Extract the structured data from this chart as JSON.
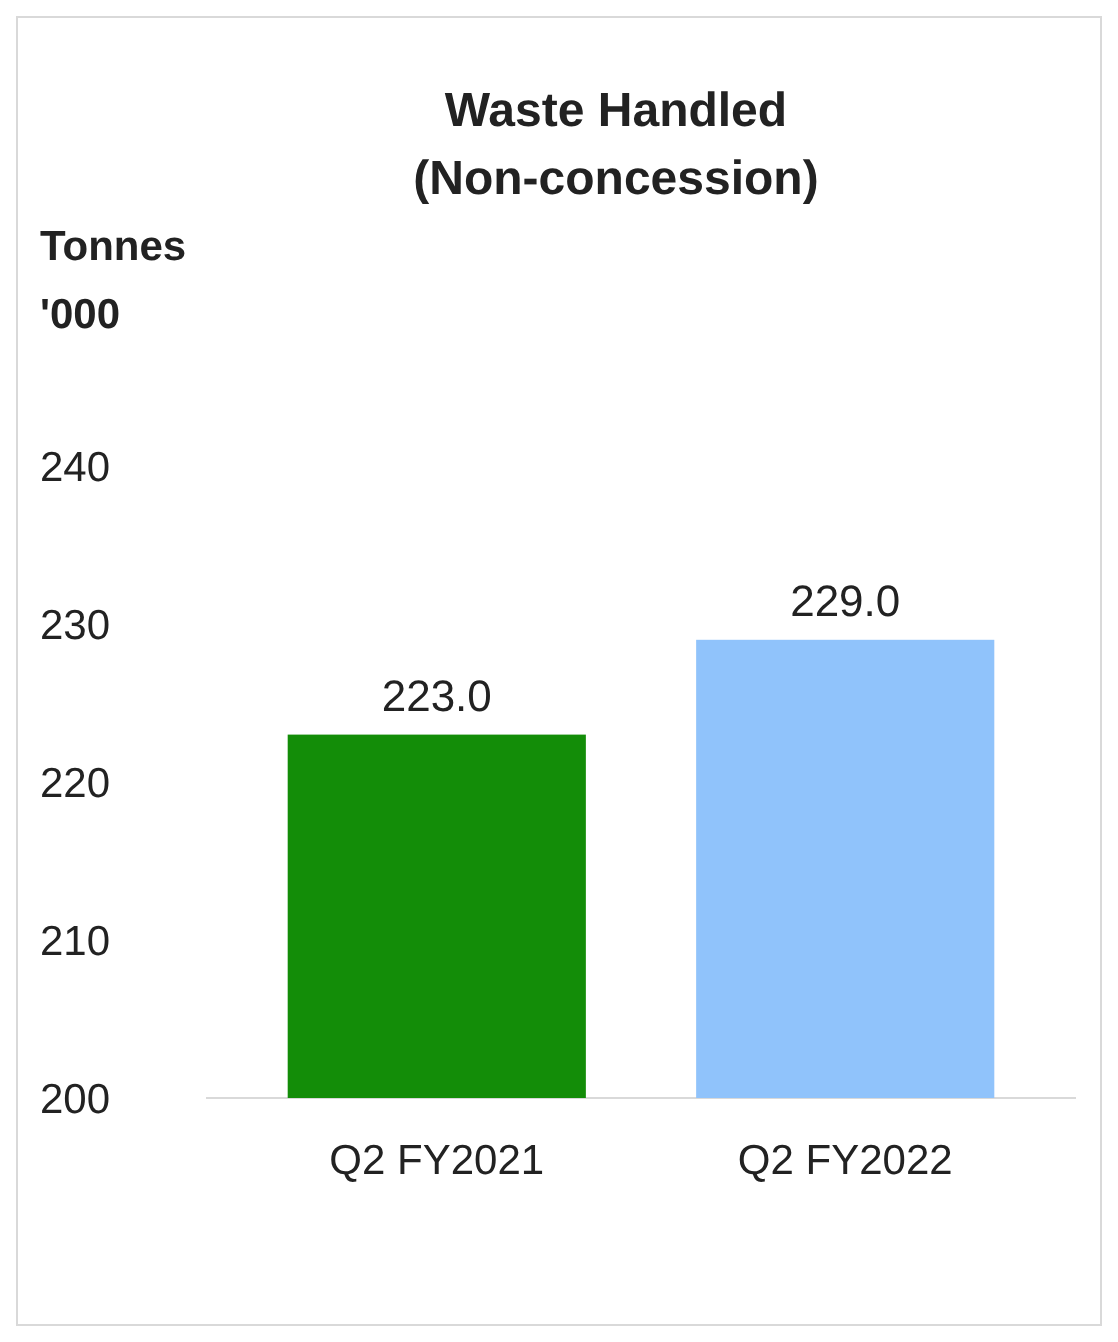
{
  "chart_data": {
    "type": "bar",
    "title": "Waste Handled\n(Non-concession)",
    "ylabel": "Tonnes\n'000",
    "categories": [
      "Q2 FY2021",
      "Q2 FY2022"
    ],
    "values": [
      223.0,
      229.0
    ],
    "colors": [
      "#138d08",
      "#90c3fb"
    ],
    "value_labels": [
      "223.0",
      "229.0"
    ],
    "ylim": [
      200,
      240
    ],
    "yticks": [
      200,
      210,
      220,
      230,
      240
    ],
    "grid": false
  }
}
